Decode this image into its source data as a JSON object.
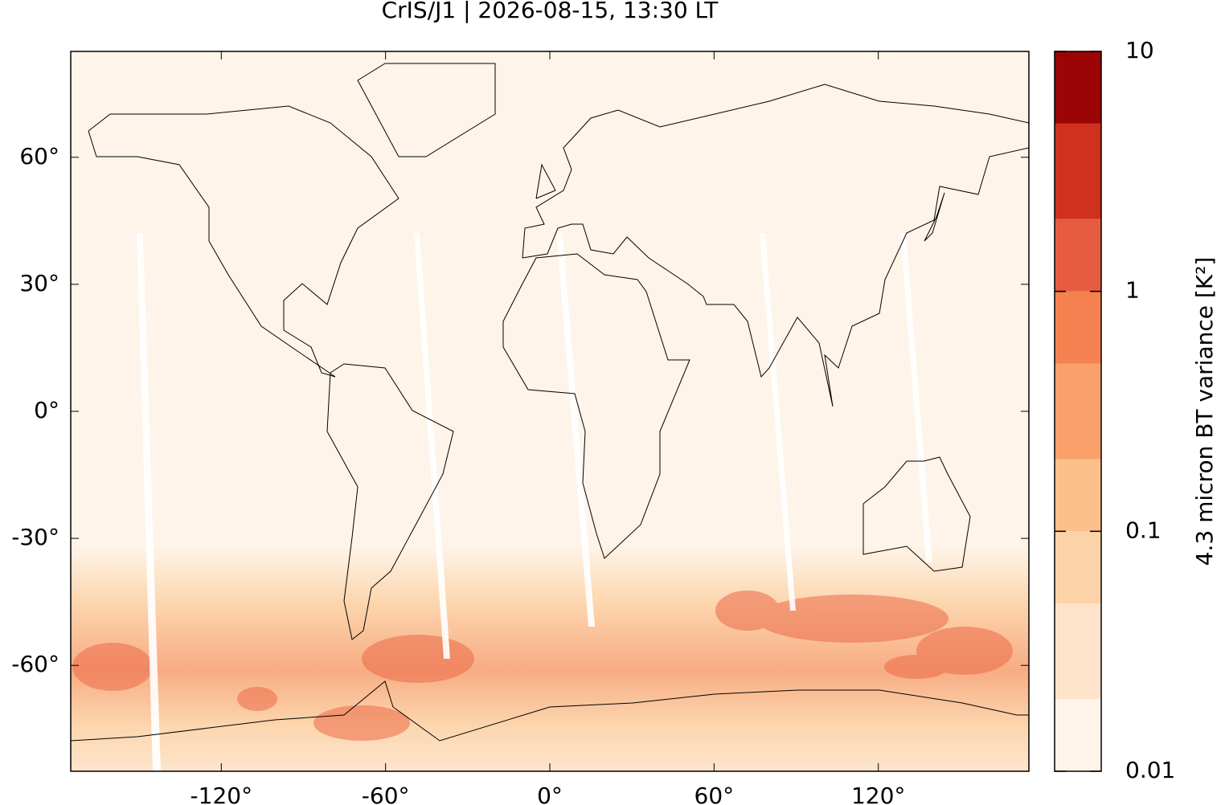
{
  "chart_data": {
    "type": "map",
    "title": "CrIS/J1 | 2026-08-15, 13:30 LT",
    "xlim": [
      -175,
      175
    ],
    "ylim": [
      -85,
      85
    ],
    "xticks": [
      {
        "value": -120,
        "label": "-120°"
      },
      {
        "value": -60,
        "label": "-60°"
      },
      {
        "value": 0,
        "label": "0°"
      },
      {
        "value": 60,
        "label": "60°"
      },
      {
        "value": 120,
        "label": "120°"
      }
    ],
    "yticks": [
      {
        "value": 60,
        "label": "60°"
      },
      {
        "value": 30,
        "label": "30°"
      },
      {
        "value": 0,
        "label": "0°"
      },
      {
        "value": -30,
        "label": "-30°"
      },
      {
        "value": -60,
        "label": "-60°"
      }
    ],
    "colorbar": {
      "label": "4.3 micron BT variance [K²]",
      "scale": "log",
      "lim": [
        0.01,
        10
      ],
      "ticks": [
        0.01,
        0.1,
        1,
        10
      ],
      "levels": [
        0.01,
        0.02,
        0.05,
        0.1,
        0.2,
        0.5,
        1,
        2,
        5,
        10
      ],
      "colors": [
        "#fef4e9",
        "#fde3c9",
        "#fcd3a8",
        "#fcc08b",
        "#f9a06b",
        "#f4814f",
        "#e75c40",
        "#d0311f",
        "#9b0505"
      ]
    }
  }
}
